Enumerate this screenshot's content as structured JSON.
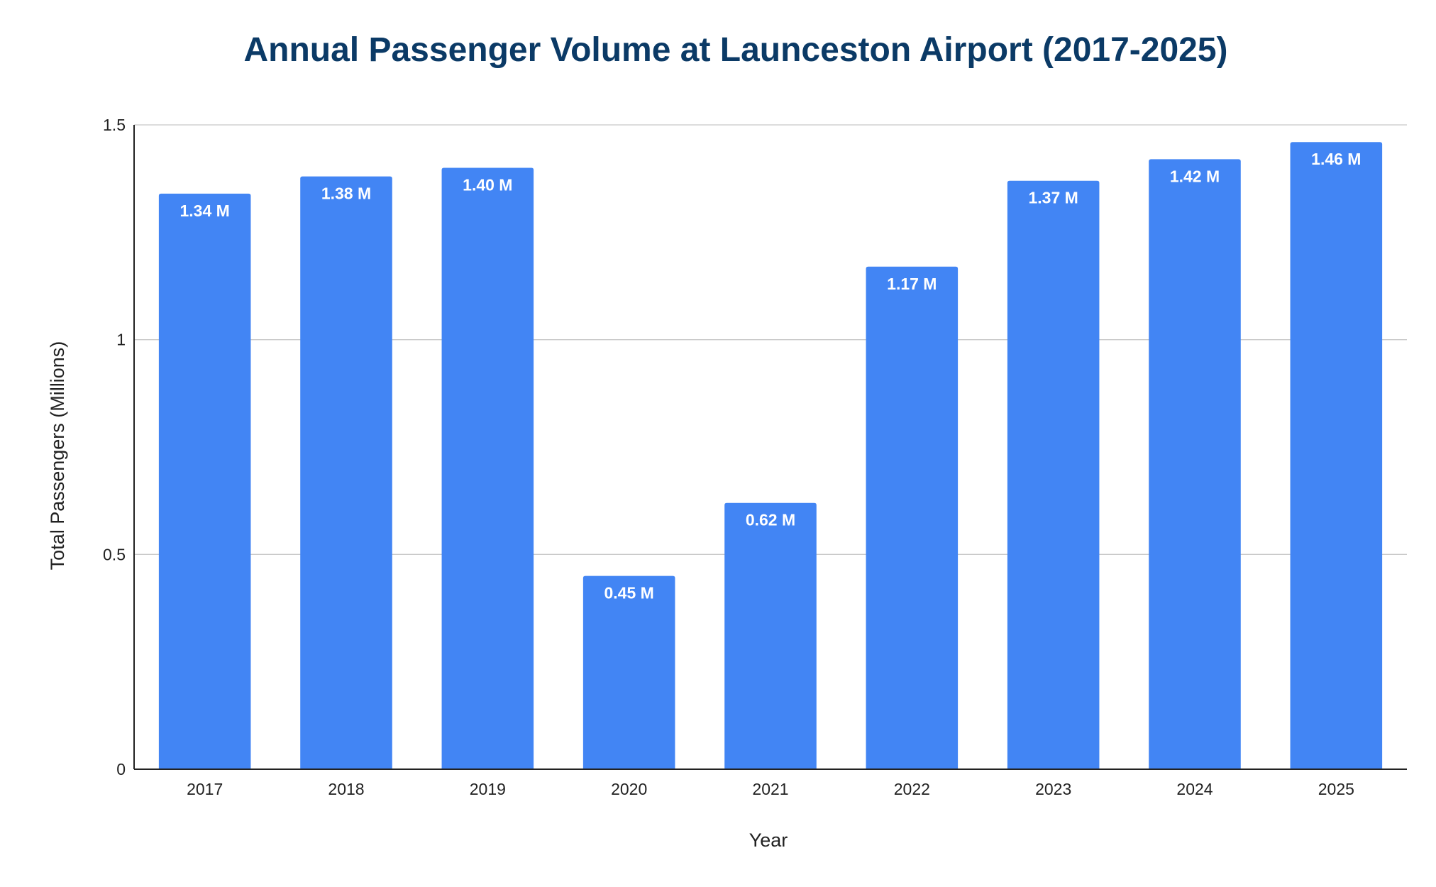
{
  "chart_data": {
    "type": "bar",
    "title": "Annual Passenger Volume at Launceston Airport (2017-2025)",
    "xlabel": "Year",
    "ylabel": "Total Passengers (Millions)",
    "categories": [
      "2017",
      "2018",
      "2019",
      "2020",
      "2021",
      "2022",
      "2023",
      "2024",
      "2025"
    ],
    "values": [
      1.34,
      1.38,
      1.4,
      0.45,
      0.62,
      1.17,
      1.37,
      1.42,
      1.46
    ],
    "data_labels": [
      "1.34 M",
      "1.38 M",
      "1.40 M",
      "0.45 M",
      "0.62 M",
      "1.17 M",
      "1.37 M",
      "1.42 M",
      "1.46 M"
    ],
    "ylim": [
      0,
      1.5
    ],
    "yticks": [
      0,
      0.5,
      1,
      1.5
    ],
    "ytick_labels": [
      "0",
      "0.5",
      "1",
      "1.5"
    ],
    "grid": true,
    "legend": "none",
    "bar_color": "#4285f4",
    "title_color": "#0b3a66"
  }
}
